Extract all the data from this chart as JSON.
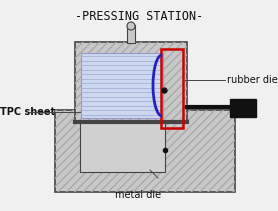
{
  "title": "-PRESSING STATION-",
  "title_fontsize": 8.5,
  "fig_bg": "#f0f0f0",
  "labels": {
    "rubber_die": "rubber die",
    "tpc_sheet": "TPC sheet",
    "metal_die": "metal die"
  },
  "label_fontsize": 7,
  "colors": {
    "dark_gray": "#444444",
    "medium_gray": "#999999",
    "light_gray": "#c8c8c8",
    "hatch_gray": "#aaaaaa",
    "tpc_blue": "#ccd8f0",
    "tpc_line": "#9999cc",
    "red_rect": "#cc0000",
    "blue_arc": "#2222bb",
    "black": "#111111",
    "white": "#ffffff",
    "metal_bg": "#d0d0d0",
    "inner_white": "#e8eaf0"
  },
  "layout": {
    "fig_w": 2.78,
    "fig_h": 2.11,
    "dpi": 100
  }
}
